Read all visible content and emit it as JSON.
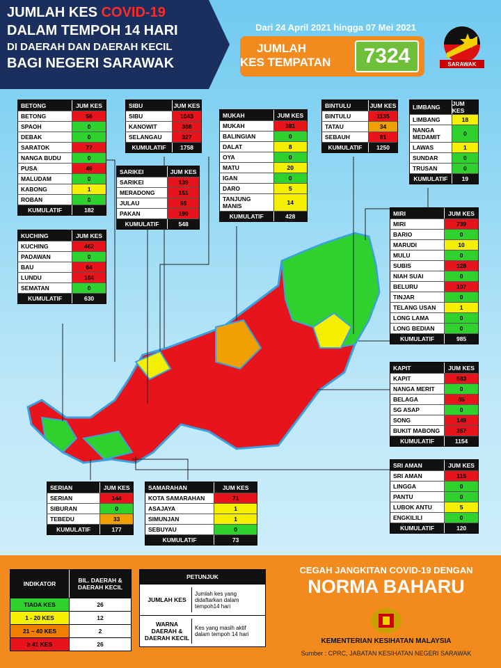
{
  "header": {
    "title_prefix": "JUMLAH KES",
    "title_highlight": "COVID-19",
    "lines": [
      "DALAM TEMPOH 14 HARI",
      "DI DAERAH DAN DAERAH KECIL",
      "BAGI NEGERI SARAWAK"
    ],
    "date_range": "Dari 24 April 2021 hingga 07 Mei 2021",
    "total_label": [
      "JUMLAH",
      "KES TEMPATAN"
    ],
    "total_value": 7324,
    "badge": "SARAWAK"
  },
  "districts": [
    {
      "title": "BETONG",
      "column": "JUM KES",
      "rows": [
        [
          "BETONG",
          56,
          "#e8141b"
        ],
        [
          "SPAOH",
          0,
          "#2fd12f"
        ],
        [
          "DEBAK",
          0,
          "#2fd12f"
        ],
        [
          "SARATOK",
          77,
          "#e8141b"
        ],
        [
          "NANGA BUDU",
          0,
          "#2fd12f"
        ],
        [
          "PUSA",
          46,
          "#e8141b"
        ],
        [
          "MALUDAM",
          0,
          "#2fd12f"
        ],
        [
          "KABONG",
          1,
          "#f5f000"
        ],
        [
          "ROBAN",
          0,
          "#2fd12f"
        ]
      ],
      "total_label": "KUMULATIF",
      "total": 182
    },
    {
      "title": "SIBU",
      "column": "JUM KES",
      "rows": [
        [
          "SIBU",
          1043,
          "#e8141b"
        ],
        [
          "KANOWIT",
          388,
          "#e8141b"
        ],
        [
          "SELANGAU",
          327,
          "#e8141b"
        ]
      ],
      "total_label": "KUMULATIF",
      "total": 1758
    },
    {
      "title": "MUKAH",
      "column": "JUM KES",
      "rows": [
        [
          "MUKAH",
          381,
          "#e8141b"
        ],
        [
          "BALINGIAN",
          0,
          "#2fd12f"
        ],
        [
          "DALAT",
          8,
          "#f5f000"
        ],
        [
          "OYA",
          0,
          "#2fd12f"
        ],
        [
          "MATU",
          20,
          "#f5f000"
        ],
        [
          "IGAN",
          0,
          "#2fd12f"
        ],
        [
          "DARO",
          5,
          "#f5f000"
        ],
        [
          "TANJUNG MANIS",
          14,
          "#f5f000"
        ]
      ],
      "total_label": "KUMULATIF",
      "total": 428
    },
    {
      "title": "BINTULU",
      "column": "JUM KES",
      "rows": [
        [
          "BINTULU",
          1135,
          "#e8141b"
        ],
        [
          "TATAU",
          34,
          "#f0a000"
        ],
        [
          "SEBAUH",
          81,
          "#e8141b"
        ]
      ],
      "total_label": "KUMULATIF",
      "total": 1250
    },
    {
      "title": "LIMBANG",
      "column": "JUM KES",
      "rows": [
        [
          "LIMBANG",
          18,
          "#f5f000"
        ],
        [
          "NANGA MEDAMIT",
          0,
          "#2fd12f"
        ],
        [
          "LAWAS",
          1,
          "#f5f000"
        ],
        [
          "SUNDAR",
          0,
          "#2fd12f"
        ],
        [
          "TRUSAN",
          0,
          "#2fd12f"
        ]
      ],
      "total_label": "KUMULATIF",
      "total": 19
    },
    {
      "title": "SARIKEI",
      "column": "JUM KES",
      "rows": [
        [
          "SARIKEI",
          139,
          "#e8141b"
        ],
        [
          "MERADONG",
          151,
          "#e8141b"
        ],
        [
          "JULAU",
          59,
          "#e8141b"
        ],
        [
          "PAKAN",
          199,
          "#e8141b"
        ]
      ],
      "total_label": "KUMULATIF",
      "total": 548
    },
    {
      "title": "KUCHING",
      "column": "JUM KES",
      "rows": [
        [
          "KUCHING",
          462,
          "#e8141b"
        ],
        [
          "PADAWAN",
          0,
          "#2fd12f"
        ],
        [
          "BAU",
          64,
          "#e8141b"
        ],
        [
          "LUNDU",
          104,
          "#e8141b"
        ],
        [
          "SEMATAN",
          0,
          "#2fd12f"
        ]
      ],
      "total_label": "KUMULATIF",
      "total": 630
    },
    {
      "title": "MIRI",
      "column": "JUM KES",
      "rows": [
        [
          "MIRI",
          739,
          "#e8141b"
        ],
        [
          "BARIO",
          0,
          "#2fd12f"
        ],
        [
          "MARUDI",
          10,
          "#f5f000"
        ],
        [
          "MULU",
          0,
          "#2fd12f"
        ],
        [
          "SUBIS",
          128,
          "#e8141b"
        ],
        [
          "NIAH SUAI",
          0,
          "#2fd12f"
        ],
        [
          "BELURU",
          107,
          "#e8141b"
        ],
        [
          "TINJAR",
          0,
          "#2fd12f"
        ],
        [
          "TELANG USAN",
          1,
          "#f5f000"
        ],
        [
          "LONG LAMA",
          0,
          "#2fd12f"
        ],
        [
          "LONG BEDIAN",
          0,
          "#2fd12f"
        ]
      ],
      "total_label": "KUMULATIF",
      "total": 985
    },
    {
      "title": "KAPIT",
      "column": "JUM KES",
      "rows": [
        [
          "KAPIT",
          583,
          "#e8141b"
        ],
        [
          "NANGA MERIT",
          0,
          "#2fd12f"
        ],
        [
          "BELAGA",
          65,
          "#e8141b"
        ],
        [
          "SG ASAP",
          0,
          "#2fd12f"
        ],
        [
          "SONG",
          149,
          "#e8141b"
        ],
        [
          "BUKIT MABONG",
          357,
          "#e8141b"
        ]
      ],
      "total_label": "KUMULATIF",
      "total": 1154
    },
    {
      "title": "SRI AMAN",
      "column": "JUM KES",
      "rows": [
        [
          "SRI AMAN",
          115,
          "#e8141b"
        ],
        [
          "LINGGA",
          0,
          "#2fd12f"
        ],
        [
          "PANTU",
          0,
          "#2fd12f"
        ],
        [
          "LUBOK ANTU",
          5,
          "#f5f000"
        ],
        [
          "ENGKILILI",
          0,
          "#2fd12f"
        ]
      ],
      "total_label": "KUMULATIF",
      "total": 120
    },
    {
      "title": "SERIAN",
      "column": "JUM KES",
      "rows": [
        [
          "SERIAN",
          144,
          "#e8141b"
        ],
        [
          "SIBURAN",
          0,
          "#2fd12f"
        ],
        [
          "TEBEDU",
          33,
          "#f0a000"
        ]
      ],
      "total_label": "KUMULATIF",
      "total": 177
    },
    {
      "title": "SAMARAHAN",
      "column": "JUM KES",
      "rows": [
        [
          "KOTA SAMARAHAN",
          71,
          "#e8141b"
        ],
        [
          "ASAJAYA",
          1,
          "#f5f000"
        ],
        [
          "SIMUNJAN",
          1,
          "#f5f000"
        ],
        [
          "SEBUYAU",
          0,
          "#2fd12f"
        ]
      ],
      "total_label": "KUMULATIF",
      "total": 73
    }
  ],
  "legend": {
    "headers": [
      "INDIKATOR",
      "BIL. DAERAH & DAERAH KECIL"
    ],
    "rows": [
      [
        "TIADA KES",
        26,
        "#2fd12f"
      ],
      [
        "1 - 20 KES",
        12,
        "#f5f000"
      ],
      [
        "21 – 40 KES",
        2,
        "#f07f00"
      ],
      [
        "≥ 41 KES",
        26,
        "#e8141b"
      ]
    ]
  },
  "guide": {
    "title": "PETUNJUK",
    "rows": [
      [
        "JUMLAH KES",
        "Jumlah kes yang didaftarkan dalam tempoh14 hari"
      ],
      [
        "WARNA DAERAH & DAERAH KECIL",
        "Kes yang masih aktif dalam tempoh 14 hari"
      ]
    ]
  },
  "footer": {
    "slogan": "CEGAH JANGKITAN COVID-19 DENGAN",
    "slogan_big": "NORMA BAHARU",
    "ministry": "KEMENTERIAN KESIHATAN MALAYSIA",
    "source": "Sumber : CPRC, JABATAN KESIHATAN NEGERI SARAWAK"
  }
}
